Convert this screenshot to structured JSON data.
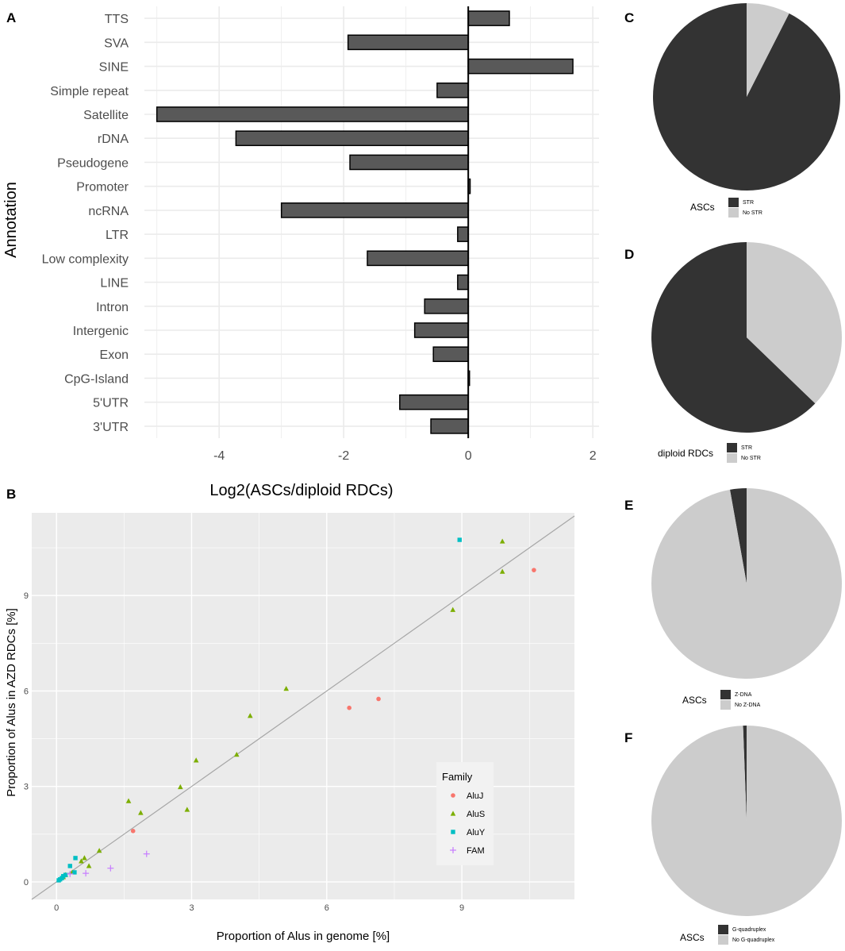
{
  "panels": {
    "a": "A",
    "b": "B",
    "c": "C",
    "d": "D",
    "e": "E",
    "f": "F"
  },
  "chart_data": [
    {
      "panel": "A",
      "type": "bar",
      "orientation": "horizontal",
      "ylabel": "Annotation",
      "xlabel": "Log2(ASCs/diploid RDCs)",
      "xlim": [
        -5.2,
        2.1
      ],
      "xticks": [
        -4,
        -2,
        0,
        2
      ],
      "xtick_labels": [
        "-4",
        "-2",
        "0",
        "2"
      ],
      "categories": [
        "TTS",
        "SVA",
        "SINE",
        "Simple repeat",
        "Satellite",
        "rDNA",
        "Pseudogene",
        "Promoter",
        "ncRNA",
        "LTR",
        "Low complexity",
        "LINE",
        "Intron",
        "Intergenic",
        "Exon",
        "CpG-Island",
        "5'UTR",
        "3'UTR"
      ],
      "values": [
        0.66,
        -1.93,
        1.68,
        -0.5,
        -5.0,
        -3.73,
        -1.9,
        0.03,
        -3.0,
        -0.17,
        -1.62,
        -0.17,
        -0.7,
        -0.86,
        -0.56,
        0.02,
        -1.1,
        -0.6
      ],
      "bar_color": "#595959"
    },
    {
      "panel": "B",
      "type": "scatter",
      "xlabel": "Proportion of Alus in genome [%]",
      "ylabel": "Proportion of Alus in AZD RDCs [%]",
      "xlim": [
        -0.55,
        11.5
      ],
      "ylim": [
        -0.55,
        11.6
      ],
      "xticks": [
        0,
        3,
        6,
        9
      ],
      "yticks": [
        0,
        3,
        6,
        9
      ],
      "tick_labels": [
        "0",
        "3",
        "6",
        "9"
      ],
      "diagonal": true,
      "legend": {
        "title": "Family",
        "position": "bottom-right"
      },
      "series": [
        {
          "name": "AluJ",
          "marker": "circle",
          "color": "#f8766d",
          "points": [
            [
              10.6,
              9.8
            ],
            [
              7.15,
              5.75
            ],
            [
              6.5,
              5.47
            ],
            [
              1.7,
              1.6
            ]
          ]
        },
        {
          "name": "AluS",
          "marker": "triangle",
          "color": "#7cae00",
          "points": [
            [
              9.9,
              10.7
            ],
            [
              9.9,
              9.75
            ],
            [
              8.8,
              8.55
            ],
            [
              5.1,
              6.07
            ],
            [
              4.3,
              5.22
            ],
            [
              3.1,
              3.82
            ],
            [
              4.0,
              4.0
            ],
            [
              2.75,
              2.98
            ],
            [
              2.9,
              2.27
            ],
            [
              1.6,
              2.54
            ],
            [
              1.87,
              2.17
            ],
            [
              0.95,
              0.98
            ],
            [
              0.62,
              0.75
            ],
            [
              0.55,
              0.65
            ],
            [
              0.72,
              0.5
            ],
            [
              0.35,
              0.3
            ],
            [
              0.2,
              0.22
            ],
            [
              0.15,
              0.15
            ]
          ]
        },
        {
          "name": "AluY",
          "marker": "square",
          "color": "#00bfc4",
          "points": [
            [
              8.95,
              10.75
            ],
            [
              0.42,
              0.75
            ],
            [
              0.3,
              0.5
            ],
            [
              0.4,
              0.3
            ],
            [
              0.2,
              0.22
            ],
            [
              0.15,
              0.18
            ],
            [
              0.12,
              0.12
            ],
            [
              0.08,
              0.08
            ],
            [
              0.05,
              0.05
            ]
          ]
        },
        {
          "name": "FAM",
          "marker": "plus",
          "color": "#c77cff",
          "points": [
            [
              2.0,
              0.88
            ],
            [
              1.2,
              0.43
            ],
            [
              0.65,
              0.27
            ],
            [
              0.3,
              0.25
            ]
          ]
        }
      ]
    },
    {
      "panel": "C",
      "type": "pie",
      "legend_title": "ASCs",
      "labels": [
        "STR",
        "No STR"
      ],
      "values": [
        0.925,
        0.075
      ],
      "colors": [
        "#333333",
        "#cccccc"
      ]
    },
    {
      "panel": "D",
      "type": "pie",
      "legend_title": "diploid RDCs",
      "labels": [
        "STR",
        "No STR"
      ],
      "values": [
        0.628,
        0.372
      ],
      "colors": [
        "#333333",
        "#cccccc"
      ]
    },
    {
      "panel": "E",
      "type": "pie",
      "legend_title": "ASCs",
      "labels": [
        "Z-DNA",
        "No Z-DNA"
      ],
      "values": [
        0.028,
        0.972
      ],
      "colors": [
        "#333333",
        "#cccccc"
      ]
    },
    {
      "panel": "F",
      "type": "pie",
      "legend_title": "ASCs",
      "labels": [
        "G-quadruplex",
        "No G-quadruplex"
      ],
      "values": [
        0.006,
        0.994
      ],
      "colors": [
        "#333333",
        "#cccccc"
      ]
    }
  ]
}
